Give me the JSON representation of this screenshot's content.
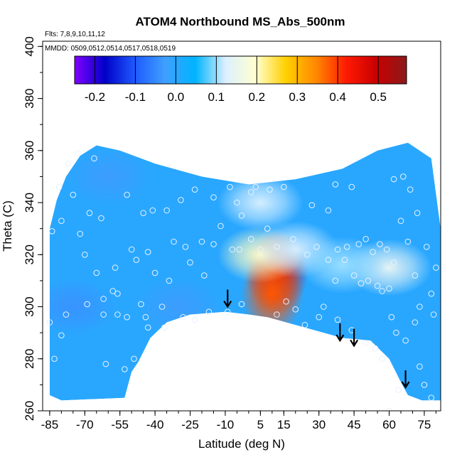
{
  "chart_data": {
    "type": "heatmap",
    "title": "ATOM4 Northbound MS_Abs_500nm",
    "annotations": {
      "flights": "Flts: 7,8,9,10,11,12",
      "dates": "MMDD: 0509,0512,0514,0517,0518,0519"
    },
    "xlabel": "Latitude (deg N)",
    "ylabel": "Theta (C)",
    "xlim": [
      -88,
      82
    ],
    "ylim": [
      260,
      402
    ],
    "x_ticks": [
      -85,
      -70,
      -55,
      -40,
      -25,
      -10,
      5,
      15,
      30,
      45,
      60,
      75
    ],
    "x_tick_labels": [
      "-85",
      "-70",
      "-55",
      "-40",
      "-25",
      "-10",
      "5",
      "15",
      "30",
      "45",
      "60",
      "75"
    ],
    "y_ticks": [
      260,
      280,
      300,
      320,
      340,
      360,
      380,
      400
    ],
    "y_tick_labels": [
      "260",
      "280",
      "300",
      "320",
      "340",
      "360",
      "380",
      "400"
    ],
    "colorbar": {
      "range": [
        -0.25,
        0.57
      ],
      "ticks": [
        -0.2,
        -0.1,
        0.0,
        0.1,
        0.2,
        0.3,
        0.4,
        0.5
      ],
      "tick_labels": [
        "-0.2",
        "-0.1",
        "0.0",
        "0.1",
        "0.2",
        "0.3",
        "0.4",
        "0.5"
      ],
      "colors": [
        "#8000ff",
        "#0000c8",
        "#1e5aff",
        "#3fa0ff",
        "#00b4ff",
        "#dcf0ff",
        "#ffffd0",
        "#ffd000",
        "#ff8800",
        "#ff1a00",
        "#c80000",
        "#8b1a1a"
      ]
    },
    "background_value": 0.0,
    "hotspots": [
      {
        "lat": 12,
        "theta": 313,
        "value": 0.48
      },
      {
        "lat": 10,
        "theta": 305,
        "value": 0.38
      },
      {
        "lat": 5,
        "theta": 320,
        "value": 0.2
      },
      {
        "lat": 20,
        "theta": 322,
        "value": 0.12
      },
      {
        "lat": 60,
        "theta": 315,
        "value": 0.14
      },
      {
        "lat": 40,
        "theta": 316,
        "value": 0.1
      },
      {
        "lat": 5,
        "theta": 340,
        "value": 0.12
      },
      {
        "lat": -60,
        "theta": 350,
        "value": -0.03
      },
      {
        "lat": -75,
        "theta": 300,
        "value": -0.04
      },
      {
        "lat": -30,
        "theta": 300,
        "value": -0.03
      }
    ],
    "data_boundary_top": [
      [
        -85,
        330
      ],
      [
        -82,
        341
      ],
      [
        -78,
        350
      ],
      [
        -72,
        358
      ],
      [
        -65,
        362
      ],
      [
        -55,
        360
      ],
      [
        -40,
        355
      ],
      [
        -20,
        350
      ],
      [
        0,
        347
      ],
      [
        20,
        349
      ],
      [
        40,
        353
      ],
      [
        55,
        360
      ],
      [
        68,
        363
      ],
      [
        78,
        357
      ],
      [
        82,
        330
      ]
    ],
    "data_boundary_bottom": [
      [
        82,
        264
      ],
      [
        74,
        264
      ],
      [
        68,
        266
      ],
      [
        65,
        271
      ],
      [
        60,
        280
      ],
      [
        52,
        287
      ],
      [
        40,
        288
      ],
      [
        20,
        293
      ],
      [
        8,
        296
      ],
      [
        0,
        297
      ],
      [
        -10,
        298
      ],
      [
        -25,
        297
      ],
      [
        -35,
        294
      ],
      [
        -42,
        288
      ],
      [
        -47,
        279
      ],
      [
        -50,
        275
      ],
      [
        -53,
        265
      ],
      [
        -80,
        264
      ],
      [
        -85,
        266
      ]
    ],
    "measurement_points": [
      [
        -84,
        329
      ],
      [
        -81,
        346
      ],
      [
        -77,
        355
      ],
      [
        -73,
        359
      ],
      [
        -66,
        357
      ],
      [
        -75,
        343
      ],
      [
        -68,
        336
      ],
      [
        -63,
        334
      ],
      [
        -52,
        343
      ],
      [
        -45,
        336
      ],
      [
        -41,
        337
      ],
      [
        -35,
        337
      ],
      [
        -29,
        341
      ],
      [
        -23,
        345
      ],
      [
        -15,
        342
      ],
      [
        -8,
        346
      ],
      [
        -5,
        340
      ],
      [
        1,
        344
      ],
      [
        3,
        346
      ],
      [
        9,
        345
      ],
      [
        15,
        346
      ],
      [
        27,
        339
      ],
      [
        34,
        337
      ],
      [
        37,
        347
      ],
      [
        44,
        346
      ],
      [
        -85,
        294
      ],
      [
        -83,
        280
      ],
      [
        -80,
        289
      ],
      [
        -78,
        297
      ],
      [
        -69,
        301
      ],
      [
        -62,
        303
      ],
      [
        -58,
        306
      ],
      [
        -56,
        297
      ],
      [
        -52,
        296
      ],
      [
        -46,
        301
      ],
      [
        -44,
        296
      ],
      [
        -37,
        300
      ],
      [
        -36,
        292
      ],
      [
        -28,
        296
      ],
      [
        -23,
        295
      ],
      [
        -17,
        298
      ],
      [
        -9,
        298
      ],
      [
        -43,
        321
      ],
      [
        -32,
        325
      ],
      [
        -27,
        323
      ],
      [
        -20,
        325
      ],
      [
        -15,
        324
      ],
      [
        -7,
        322
      ],
      [
        -4,
        322
      ],
      [
        -48,
        318
      ],
      [
        -40,
        313
      ],
      [
        -34,
        310
      ],
      [
        -25,
        317
      ],
      [
        -19,
        312
      ],
      [
        -56,
        305
      ],
      [
        -62,
        297
      ],
      [
        -61,
        278
      ],
      [
        -53,
        276
      ],
      [
        -49,
        280
      ],
      [
        -43,
        292
      ],
      [
        -3,
        301
      ],
      [
        1,
        326
      ],
      [
        5,
        322
      ],
      [
        12,
        323
      ],
      [
        19,
        326
      ],
      [
        25,
        320
      ],
      [
        29,
        323
      ],
      [
        34,
        318
      ],
      [
        38,
        322
      ],
      [
        42,
        323
      ],
      [
        47,
        324
      ],
      [
        50,
        326
      ],
      [
        53,
        321
      ],
      [
        56,
        324
      ],
      [
        59,
        322
      ],
      [
        62,
        317
      ],
      [
        65,
        333
      ],
      [
        68,
        325
      ],
      [
        71,
        312
      ],
      [
        73,
        300
      ],
      [
        78,
        305
      ],
      [
        79,
        297
      ],
      [
        80,
        315
      ],
      [
        76,
        323
      ],
      [
        72,
        336
      ],
      [
        69,
        345
      ],
      [
        66,
        350
      ],
      [
        62,
        349
      ],
      [
        60,
        307
      ],
      [
        57,
        306
      ],
      [
        55,
        308
      ],
      [
        51,
        310
      ],
      [
        48,
        309
      ],
      [
        45,
        312
      ],
      [
        41,
        318
      ],
      [
        37,
        310
      ],
      [
        32,
        300
      ],
      [
        24,
        293
      ],
      [
        20,
        299
      ],
      [
        16,
        302
      ],
      [
        54,
        284
      ],
      [
        57,
        280
      ],
      [
        61,
        296
      ],
      [
        63,
        290
      ],
      [
        67,
        287
      ],
      [
        71,
        294
      ],
      [
        73,
        277
      ],
      [
        75,
        270
      ],
      [
        78,
        265
      ],
      [
        64,
        268
      ],
      [
        60,
        260
      ],
      [
        50,
        286
      ],
      [
        44,
        291
      ],
      [
        38,
        295
      ],
      [
        30,
        296
      ],
      [
        12,
        297
      ],
      [
        -70,
        320
      ],
      [
        -72,
        328
      ],
      [
        -80,
        333
      ],
      [
        -65,
        313
      ],
      [
        -57,
        315
      ],
      [
        -50,
        322
      ],
      [
        -12,
        331
      ],
      [
        -3,
        335
      ],
      [
        8,
        330
      ]
    ],
    "arrows": [
      {
        "lat": -9,
        "theta": 300
      },
      {
        "lat": 39,
        "theta": 287
      },
      {
        "lat": 45,
        "theta": 285
      },
      {
        "lat": 67,
        "theta": 269
      }
    ]
  }
}
